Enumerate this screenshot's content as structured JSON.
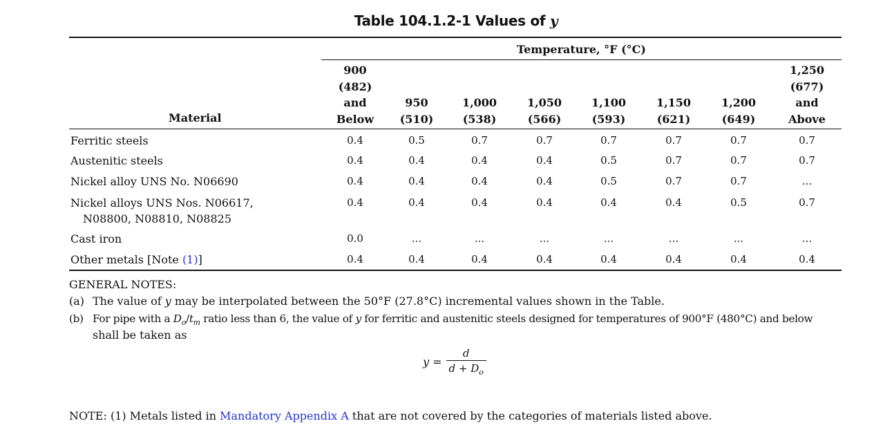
{
  "title_prefix": "Table 104.1.2-1 Values of ",
  "title_var": "y",
  "temperature_header": "Temperature, °F (°C)",
  "material_header": "Material",
  "columns": [
    {
      "lines": [
        "900",
        "(482)",
        "and",
        "Below"
      ]
    },
    {
      "lines": [
        "950",
        "(510)"
      ]
    },
    {
      "lines": [
        "1,000",
        "(538)"
      ]
    },
    {
      "lines": [
        "1,050",
        "(566)"
      ]
    },
    {
      "lines": [
        "1,100",
        "(593)"
      ]
    },
    {
      "lines": [
        "1,150",
        "(621)"
      ]
    },
    {
      "lines": [
        "1,200",
        "(649)"
      ]
    },
    {
      "lines": [
        "1,250",
        "(677)",
        "and",
        "Above"
      ]
    }
  ],
  "rows": [
    {
      "label": "Ferritic steels",
      "values": [
        "0.4",
        "0.5",
        "0.7",
        "0.7",
        "0.7",
        "0.7",
        "0.7",
        "0.7"
      ]
    },
    {
      "label": "Austenitic steels",
      "values": [
        "0.4",
        "0.4",
        "0.4",
        "0.4",
        "0.5",
        "0.7",
        "0.7",
        "0.7"
      ]
    },
    {
      "label": "Nickel alloy UNS No. N06690",
      "values": [
        "0.4",
        "0.4",
        "0.4",
        "0.4",
        "0.5",
        "0.7",
        "0.7",
        "..."
      ]
    },
    {
      "label": "Nickel alloys UNS Nos. N06617,",
      "label2": "N08800, N08810, N08825",
      "values": [
        "0.4",
        "0.4",
        "0.4",
        "0.4",
        "0.4",
        "0.4",
        "0.5",
        "0.7"
      ]
    },
    {
      "label": "Cast iron",
      "values": [
        "0.0",
        "...",
        "...",
        "...",
        "...",
        "...",
        "...",
        "..."
      ]
    },
    {
      "label": "Other metals [Note ",
      "label_link": "(1)",
      "label_end": "]",
      "values": [
        "0.4",
        "0.4",
        "0.4",
        "0.4",
        "0.4",
        "0.4",
        "0.4",
        "0.4"
      ]
    }
  ],
  "general_notes_title": "GENERAL NOTES:",
  "note_a_tag": "(a)",
  "note_a_pre": "The value of ",
  "note_a_var": "y",
  "note_a_post": " may be interpolated between the 50°F (27.8°C) incremental values shown in the Table.",
  "note_b_tag": "(b)",
  "note_b_pre": "For pipe with a ",
  "note_b_D": "D",
  "note_b_Dsub": "o",
  "note_b_slash": "/",
  "note_b_t": "t",
  "note_b_tsub": "m",
  "note_b_mid": " ratio less than 6, the value of ",
  "note_b_var": "y",
  "note_b_post": " for ferritic and austenitic steels designed for temperatures of 900°F (480°C) and below",
  "note_b_line2": "shall be taken as",
  "formula": {
    "lhs": "y =",
    "numerator": "d",
    "denominator_d": "d",
    "denominator_plus": " + ",
    "denominator_D": "D",
    "denominator_sub": "o"
  },
  "note_prefix": "NOTE:  (1)  Metals listed in ",
  "note_link": "Mandatory Appendix A",
  "note_suffix": " that are not covered by the categories of materials listed above."
}
